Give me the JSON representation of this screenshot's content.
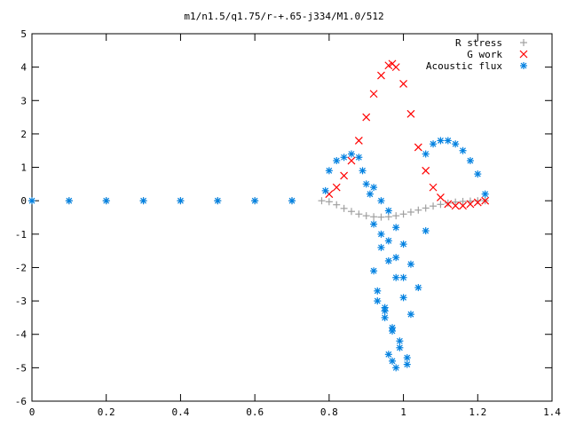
{
  "chart_data": {
    "type": "scatter",
    "title": "m1/n1.5/q1.75/r-+.65-j334/M1.0/512",
    "xlabel": "",
    "ylabel": "",
    "xlim": [
      0,
      1.4
    ],
    "ylim": [
      -6,
      5
    ],
    "x_ticks": [
      0,
      0.2,
      0.4,
      0.6,
      0.8,
      1,
      1.2,
      1.4
    ],
    "x_tick_labels": [
      "0",
      "0.2",
      "0.4",
      "0.6",
      "0.8",
      "1",
      "1.2",
      "1.4"
    ],
    "y_ticks": [
      -6,
      -5,
      -4,
      -3,
      -2,
      -1,
      0,
      1,
      2,
      3,
      4,
      5
    ],
    "y_tick_labels": [
      "-6",
      "-5",
      "-4",
      "-3",
      "-2",
      "-1",
      "0",
      "1",
      "2",
      "3",
      "4",
      "5"
    ],
    "grid": false,
    "legend_position": "top-right",
    "series": [
      {
        "name": "R stress",
        "marker": "plus",
        "color": "#a0a0a0",
        "x": [
          0.0,
          0.1,
          0.2,
          0.3,
          0.4,
          0.5,
          0.6,
          0.7,
          0.78,
          0.8,
          0.82,
          0.84,
          0.86,
          0.88,
          0.9,
          0.92,
          0.94,
          0.96,
          0.98,
          1.0,
          1.02,
          1.04,
          1.06,
          1.08,
          1.1,
          1.12,
          1.14,
          1.16,
          1.18,
          1.2,
          1.22
        ],
        "y": [
          0.0,
          0.0,
          0.0,
          0.0,
          0.0,
          0.0,
          0.0,
          0.0,
          0.0,
          -0.03,
          -0.12,
          -0.23,
          -0.32,
          -0.4,
          -0.45,
          -0.48,
          -0.49,
          -0.48,
          -0.45,
          -0.4,
          -0.34,
          -0.28,
          -0.22,
          -0.16,
          -0.11,
          -0.07,
          -0.04,
          -0.02,
          -0.01,
          0.0,
          0.0
        ]
      },
      {
        "name": "G work",
        "marker": "cross",
        "color": "#ff0000",
        "x": [
          0.8,
          0.82,
          0.84,
          0.86,
          0.88,
          0.9,
          0.92,
          0.94,
          0.96,
          0.97,
          0.98,
          1.0,
          1.02,
          1.04,
          1.06,
          1.08,
          1.1,
          1.12,
          1.14,
          1.16,
          1.18,
          1.2,
          1.22
        ],
        "y": [
          0.2,
          0.4,
          0.75,
          1.2,
          1.8,
          2.5,
          3.2,
          3.75,
          4.05,
          4.1,
          4.0,
          3.5,
          2.6,
          1.6,
          0.9,
          0.4,
          0.1,
          -0.1,
          -0.15,
          -0.15,
          -0.1,
          -0.05,
          0.0
        ]
      },
      {
        "name": "Acoustic flux",
        "marker": "star",
        "color": "#0080e0",
        "x": [
          0.0,
          0.1,
          0.2,
          0.3,
          0.4,
          0.5,
          0.6,
          0.7,
          0.79,
          0.8,
          0.82,
          0.84,
          0.86,
          0.88,
          0.89,
          0.9,
          0.91,
          1.06,
          1.08,
          1.1,
          1.12,
          1.14,
          1.16,
          1.18,
          1.2,
          1.22,
          0.92,
          0.93,
          0.95,
          0.97,
          0.99,
          1.01,
          0.94,
          0.96,
          0.98,
          1.0,
          1.02,
          0.92,
          0.94,
          0.96,
          0.98,
          1.0,
          0.93,
          0.95,
          0.97,
          0.99,
          1.01,
          0.92,
          0.94,
          0.96,
          0.98,
          1.0,
          1.02,
          1.04,
          1.06,
          0.96,
          0.98,
          0.97,
          0.95
        ],
        "y": [
          0.0,
          0.0,
          0.0,
          0.0,
          0.0,
          0.0,
          0.0,
          0.0,
          0.3,
          0.9,
          1.2,
          1.3,
          1.4,
          1.3,
          0.9,
          0.5,
          0.2,
          1.4,
          1.7,
          1.8,
          1.8,
          1.7,
          1.5,
          1.2,
          0.8,
          0.2,
          -2.1,
          -2.7,
          -3.2,
          -3.8,
          -4.4,
          -4.7,
          -1.4,
          -1.8,
          -2.3,
          -2.9,
          -3.4,
          -0.7,
          -1.0,
          -1.2,
          -1.7,
          -2.3,
          -3.0,
          -3.5,
          -3.9,
          -4.2,
          -4.9,
          0.4,
          0.0,
          -0.3,
          -0.8,
          -1.3,
          -1.9,
          -2.6,
          -0.9,
          -4.6,
          -5.0,
          -4.8,
          -3.3
        ]
      }
    ]
  }
}
